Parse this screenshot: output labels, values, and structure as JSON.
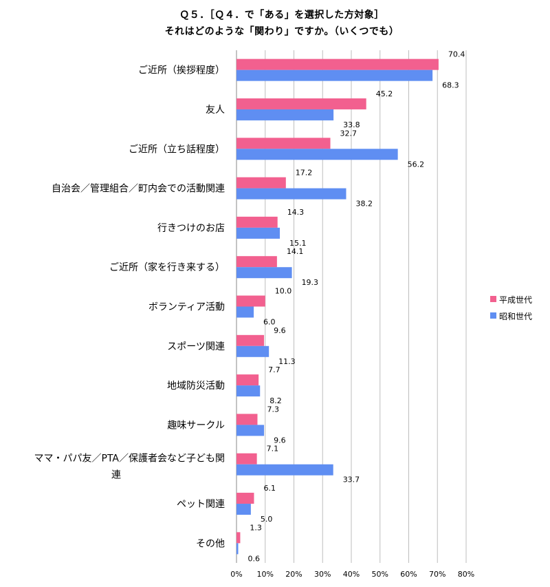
{
  "chart_data": {
    "type": "bar",
    "orientation": "horizontal",
    "title_line1": "Ｑ５．［Ｑ４．で「ある」を選択した方対象］",
    "title_line2": "それはどのような「関わり」ですか。（いくつでも）",
    "categories": [
      "ご近所（挨拶程度）",
      "友人",
      "ご近所（立ち話程度）",
      "自治会／管理組合／町内会での活動関連",
      "行きつけのお店",
      "ご近所（家を行き来する）",
      "ボランティア活動",
      "スポーツ関連",
      "地域防災活動",
      "趣味サークル",
      "ママ・パパ友／PTA／保護者会など子ども関連",
      "ペット関連",
      "その他"
    ],
    "series": [
      {
        "name": "平成世代",
        "color": "#f2608f",
        "values": [
          70.4,
          45.2,
          32.7,
          17.2,
          14.3,
          14.1,
          10.0,
          9.6,
          7.7,
          7.3,
          7.1,
          6.1,
          1.3
        ],
        "labels": [
          "70.4",
          "45.2",
          "32.7",
          "17.2",
          "14.3",
          "14.1",
          "10.0",
          "9.6",
          "7.7",
          "7.3",
          "7.1",
          "6.1",
          "1.3"
        ]
      },
      {
        "name": "昭和世代",
        "color": "#5f8ef2",
        "values": [
          68.3,
          33.8,
          56.2,
          38.2,
          15.1,
          19.3,
          6.0,
          11.3,
          8.2,
          9.6,
          33.7,
          5.0,
          0.6
        ],
        "labels": [
          "68.3",
          "33.8",
          "56.2",
          "38.2",
          "15.1",
          "19.3",
          "6.0",
          "11.3",
          "8.2",
          "9.6",
          "33.7",
          "5.0",
          "0.6"
        ]
      }
    ],
    "xlim": [
      0,
      80
    ],
    "xticks": [
      "0%",
      "10%",
      "20%",
      "30%",
      "40%",
      "50%",
      "60%",
      "70%",
      "80%"
    ],
    "grid": true,
    "legend_position": "right"
  }
}
